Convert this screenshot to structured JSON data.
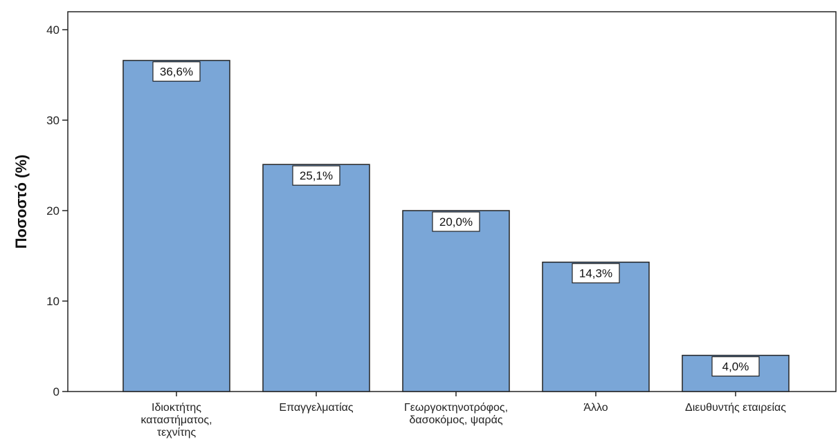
{
  "chart_data": {
    "type": "bar",
    "title": "",
    "xlabel": "",
    "ylabel": "Ποσοστό (%)",
    "ylim": [
      0,
      40
    ],
    "yticks": [
      "0",
      "10",
      "20",
      "30",
      "40"
    ],
    "grid": false,
    "categories": [
      "Ιδιοκτήτης καταστήματος, τεχνίτης",
      "Επαγγελματίας",
      "Γεωργοκτηνοτρόφος, δασοκόμος, ψαράς",
      "Άλλο",
      "Διευθυντής εταιρείας"
    ],
    "category_lines": [
      [
        "Ιδιοκτήτης",
        "καταστήματος,",
        "τεχνίτης"
      ],
      [
        "Επαγγελματίας"
      ],
      [
        "Γεωργοκτηνοτρόφος,",
        "δασοκόμος, ψαράς"
      ],
      [
        "Άλλο"
      ],
      [
        "Διευθυντής εταιρείας"
      ]
    ],
    "values": [
      36.6,
      25.1,
      20.0,
      14.3,
      4.0
    ],
    "value_labels": [
      "36,6%",
      "25,1%",
      "20,0%",
      "14,3%",
      "4,0%"
    ],
    "bar_color": "#7aa6d7",
    "bar_edge_color": "#222222"
  }
}
